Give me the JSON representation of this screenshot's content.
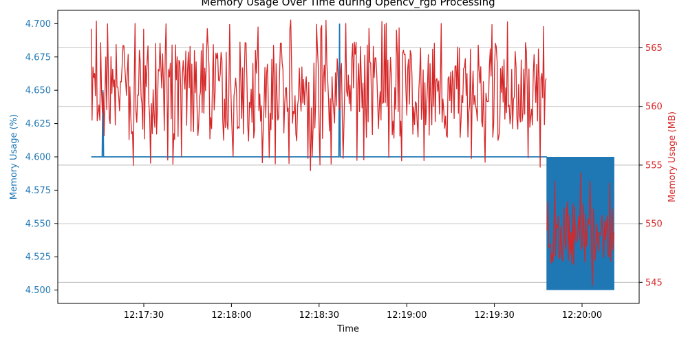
{
  "chart_data": {
    "type": "line",
    "title": "Memory Usage Over Time during Opencv_rgb Processing",
    "xlabel": "Time",
    "ylabel_left": "Memory Usage (%)",
    "ylabel_right": "Memory Usage (MB)",
    "x_range": [
      "12:17:12",
      "12:20:11"
    ],
    "x_ticks": [
      "12:17:30",
      "12:18:00",
      "12:18:30",
      "12:19:00",
      "12:19:30",
      "12:20:00"
    ],
    "y_left_ticks": [
      "4.500",
      "4.525",
      "4.550",
      "4.575",
      "4.600",
      "4.625",
      "4.650",
      "4.675",
      "4.700"
    ],
    "y_left_range": [
      4.49,
      4.71
    ],
    "y_right_ticks": [
      "545",
      "550",
      "555",
      "560",
      "565"
    ],
    "y_right_range": [
      543.2,
      568.2
    ],
    "grid": "right-axis horizontal",
    "colors": {
      "left": "#1f77b4",
      "right": "#d62728"
    },
    "series": [
      {
        "name": "Memory Usage (%)",
        "axis": "left",
        "color": "#1f77b4",
        "segments": [
          {
            "from": "12:17:12",
            "to": "12:19:48",
            "value": 4.6,
            "spikes": [
              {
                "at": "12:17:16",
                "value": 4.65
              },
              {
                "at": "12:18:37",
                "value": 4.7
              }
            ]
          },
          {
            "from": "12:19:48",
            "to": "12:20:11",
            "band": [
              4.5,
              4.6
            ]
          }
        ]
      },
      {
        "name": "Memory Usage (MB)",
        "axis": "right",
        "color": "#d62728",
        "segments": [
          {
            "from": "12:17:12",
            "to": "12:19:48",
            "mean": 560.5,
            "low": 557.0,
            "high": 565.5,
            "min": 554.5,
            "max": 567.5
          },
          {
            "from": "12:19:48",
            "to": "12:20:11",
            "mean": 548.5,
            "low": 546.5,
            "high": 552.0,
            "min": 543.5,
            "max": 554.5
          }
        ]
      }
    ]
  }
}
